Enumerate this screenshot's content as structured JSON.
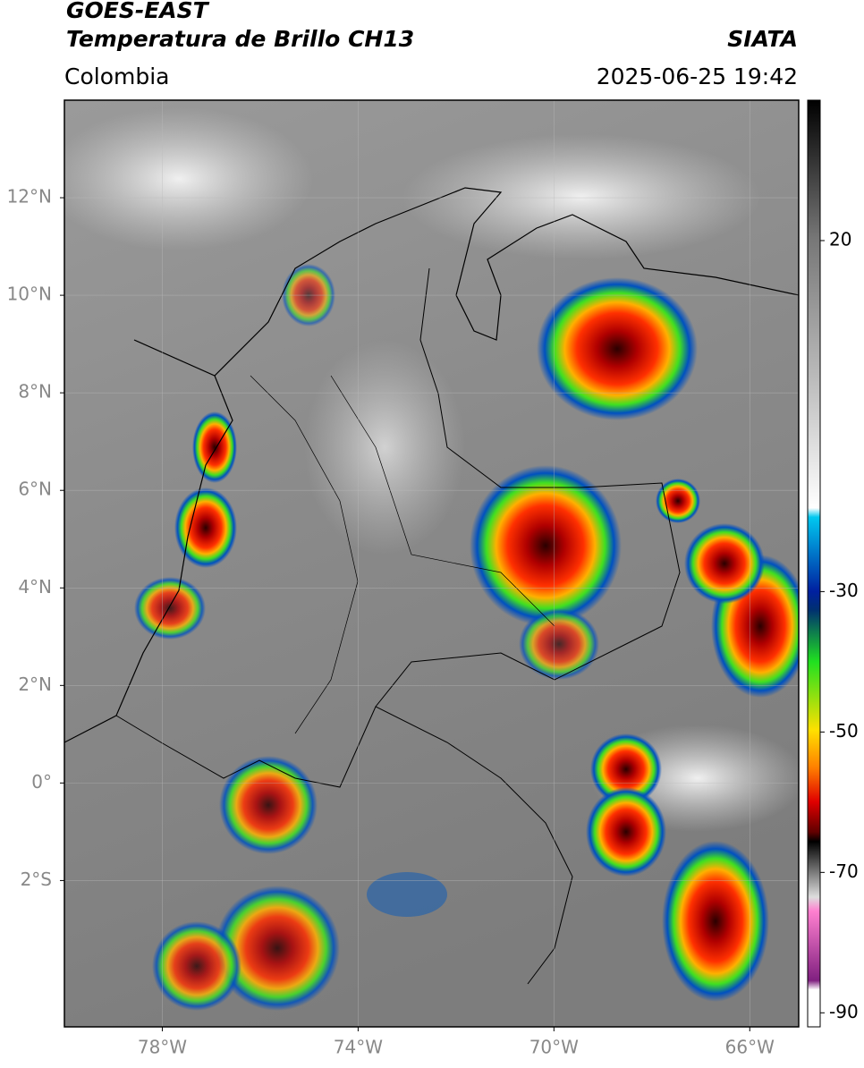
{
  "header": {
    "title": "GOES-EAST",
    "subtitle": "Temperatura de Brillo CH13",
    "region": "Colombia",
    "source": "SIATA",
    "timestamp": "2025-06-25 19:42"
  },
  "map": {
    "lonlim": [
      -80,
      -65
    ],
    "latlim": [
      -5,
      14
    ],
    "lonticks": [
      {
        "value": -78,
        "label": "78°W"
      },
      {
        "value": -74,
        "label": "74°W"
      },
      {
        "value": -70,
        "label": "70°W"
      },
      {
        "value": -66,
        "label": "66°W"
      }
    ],
    "latticks": [
      {
        "value": 12,
        "label": "12°N"
      },
      {
        "value": 10,
        "label": "10°N"
      },
      {
        "value": 8,
        "label": "8°N"
      },
      {
        "value": 6,
        "label": "6°N"
      },
      {
        "value": 4,
        "label": "4°N"
      },
      {
        "value": 2,
        "label": "2°N"
      },
      {
        "value": 0,
        "label": "0°"
      },
      {
        "value": -2,
        "label": "2°S"
      }
    ]
  },
  "colorbar": {
    "lim": [
      -92,
      40
    ],
    "ticks": [
      20,
      -30,
      -50,
      -70,
      -90
    ]
  }
}
